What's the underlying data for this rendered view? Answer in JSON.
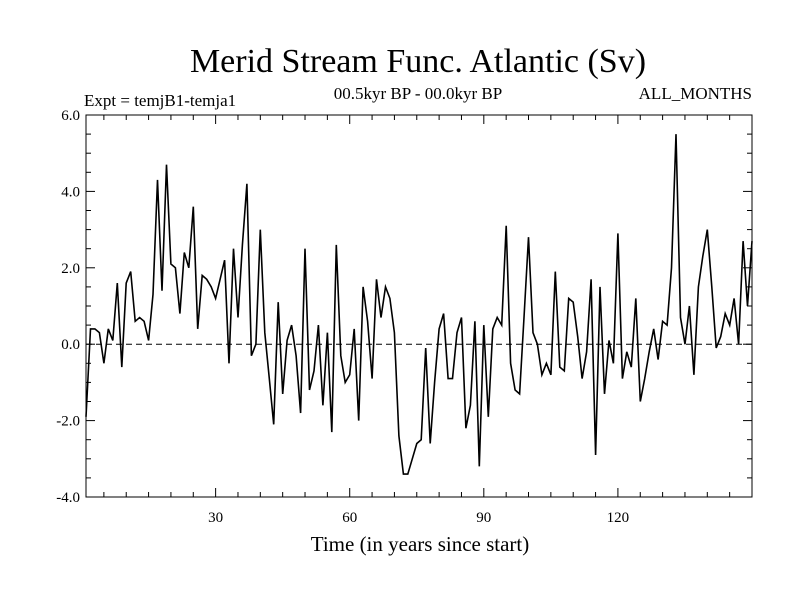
{
  "chart_data": {
    "type": "line",
    "title": "Merid Stream Func. Atlantic (Sv)",
    "expt_label": "Expt = temjB1-temja1",
    "period_label": "00.5kyr BP - 00.0kyr BP",
    "months_label": "ALL_MONTHS",
    "xlabel": "Time (in years since start)",
    "ylabel": "",
    "xlim": [
      1,
      150
    ],
    "ylim": [
      -4.0,
      6.0
    ],
    "xticks": [
      30,
      60,
      90,
      120
    ],
    "xtick_labels": [
      "30",
      "60",
      "90",
      "120"
    ],
    "yticks": [
      -4.0,
      -2.0,
      0.0,
      2.0,
      4.0,
      6.0
    ],
    "ytick_labels": [
      "-4.0",
      "-2.0",
      "0.0",
      "2.0",
      "4.0",
      "6.0"
    ],
    "reference_line": 0.0,
    "grid": false,
    "series": [
      {
        "name": "Merid Stream Func. Atlantic",
        "x": [
          1,
          2,
          3,
          4,
          5,
          6,
          7,
          8,
          9,
          10,
          11,
          12,
          13,
          14,
          15,
          16,
          17,
          18,
          19,
          20,
          21,
          22,
          23,
          24,
          25,
          26,
          27,
          28,
          29,
          30,
          31,
          32,
          33,
          34,
          35,
          36,
          37,
          38,
          39,
          40,
          41,
          42,
          43,
          44,
          45,
          46,
          47,
          48,
          49,
          50,
          51,
          52,
          53,
          54,
          55,
          56,
          57,
          58,
          59,
          60,
          61,
          62,
          63,
          64,
          65,
          66,
          67,
          68,
          69,
          70,
          71,
          72,
          73,
          74,
          75,
          76,
          77,
          78,
          79,
          80,
          81,
          82,
          83,
          84,
          85,
          86,
          87,
          88,
          89,
          90,
          91,
          92,
          93,
          94,
          95,
          96,
          97,
          98,
          99,
          100,
          101,
          102,
          103,
          104,
          105,
          106,
          107,
          108,
          109,
          110,
          111,
          112,
          113,
          114,
          115,
          116,
          117,
          118,
          119,
          120,
          121,
          122,
          123,
          124,
          125,
          126,
          127,
          128,
          129,
          130,
          131,
          132,
          133,
          134,
          135,
          136,
          137,
          138,
          139,
          140,
          141,
          142,
          143,
          144,
          145,
          146,
          147,
          148,
          149,
          150
        ],
        "values": [
          -1.9,
          0.4,
          0.4,
          0.3,
          -0.5,
          0.4,
          0.1,
          1.6,
          -0.6,
          1.6,
          1.9,
          0.6,
          0.7,
          0.6,
          0.1,
          1.3,
          4.3,
          1.4,
          4.7,
          2.1,
          2.0,
          0.8,
          2.4,
          2.0,
          3.6,
          0.4,
          1.8,
          1.7,
          1.5,
          1.2,
          1.7,
          2.2,
          -0.5,
          2.5,
          0.7,
          2.6,
          4.2,
          -0.3,
          0.0,
          3.0,
          0.3,
          -0.9,
          -2.1,
          1.1,
          -1.3,
          0.1,
          0.5,
          -0.3,
          -1.8,
          2.5,
          -1.2,
          -0.7,
          0.5,
          -1.6,
          0.3,
          -2.3,
          2.6,
          -0.3,
          -1.0,
          -0.8,
          0.4,
          -2.0,
          1.5,
          0.6,
          -0.9,
          1.7,
          0.7,
          1.5,
          1.2,
          0.3,
          -2.4,
          -3.4,
          -3.4,
          -3.0,
          -2.6,
          -2.5,
          -0.1,
          -2.6,
          -1.0,
          0.4,
          0.8,
          -0.9,
          -0.9,
          0.3,
          0.7,
          -2.2,
          -1.6,
          0.6,
          -3.2,
          0.5,
          -1.9,
          0.4,
          0.7,
          0.5,
          3.1,
          -0.5,
          -1.2,
          -1.3,
          0.7,
          2.8,
          0.3,
          0.0,
          -0.8,
          -0.5,
          -0.8,
          1.9,
          -0.6,
          -0.7,
          1.2,
          1.1,
          0.2,
          -0.9,
          -0.2,
          1.7,
          -2.9,
          1.5,
          -1.3,
          0.1,
          -0.5,
          2.9,
          -0.9,
          -0.2,
          -0.6,
          1.2,
          -1.5,
          -0.9,
          -0.2,
          0.4,
          -0.4,
          0.6,
          0.5,
          2.0,
          5.5,
          0.7,
          0.0,
          1.0,
          -0.8,
          1.5,
          2.3,
          3.0,
          1.5,
          -0.1,
          0.2,
          0.8,
          0.5,
          1.2,
          0.0,
          2.7,
          1.0,
          2.7
        ]
      }
    ]
  }
}
